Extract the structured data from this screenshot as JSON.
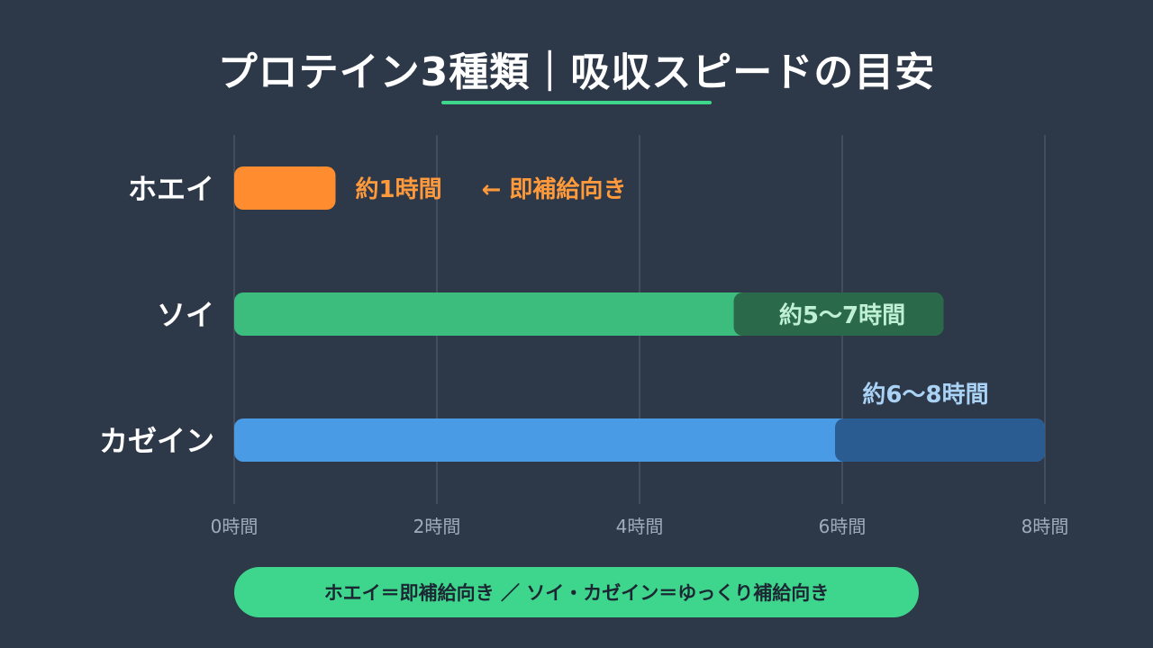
{
  "title": "プロテイン3種類｜吸収スピードの目安",
  "colors": {
    "background": "#2d3848",
    "accent": "#3dd68c",
    "grid": "#4a5566",
    "tick_text": "#a0abbb",
    "whey": "#ff8c2e",
    "soy": "#3dbd7d",
    "soy_dark": "#2a6a4b",
    "casein": "#4a9be6",
    "casein_dark": "#2b5c91",
    "whey_label": "#ff9a3c",
    "soy_label": "#bff0d4",
    "casein_label": "#a9d2f5"
  },
  "chart_data": {
    "type": "bar",
    "orientation": "horizontal",
    "xlim": [
      0,
      8
    ],
    "x_ticks": [
      0,
      2,
      4,
      6,
      8
    ],
    "x_tick_labels": [
      "0時間",
      "2時間",
      "4時間",
      "6時間",
      "8時間"
    ],
    "grid": true,
    "categories": [
      "ホエイ",
      "ソイ",
      "カゼイン"
    ],
    "values": [
      1,
      7,
      8
    ],
    "range_start": [
      null,
      5,
      6
    ],
    "range_end": [
      1,
      7,
      8
    ],
    "data_labels": [
      "約1時間",
      "約5〜7時間",
      "約6〜8時間"
    ],
    "annotation": "← 即補給向き"
  },
  "legend_text": "ホエイ＝即補給向き ／ ソイ・カゼイン＝ゆっくり補給向き"
}
